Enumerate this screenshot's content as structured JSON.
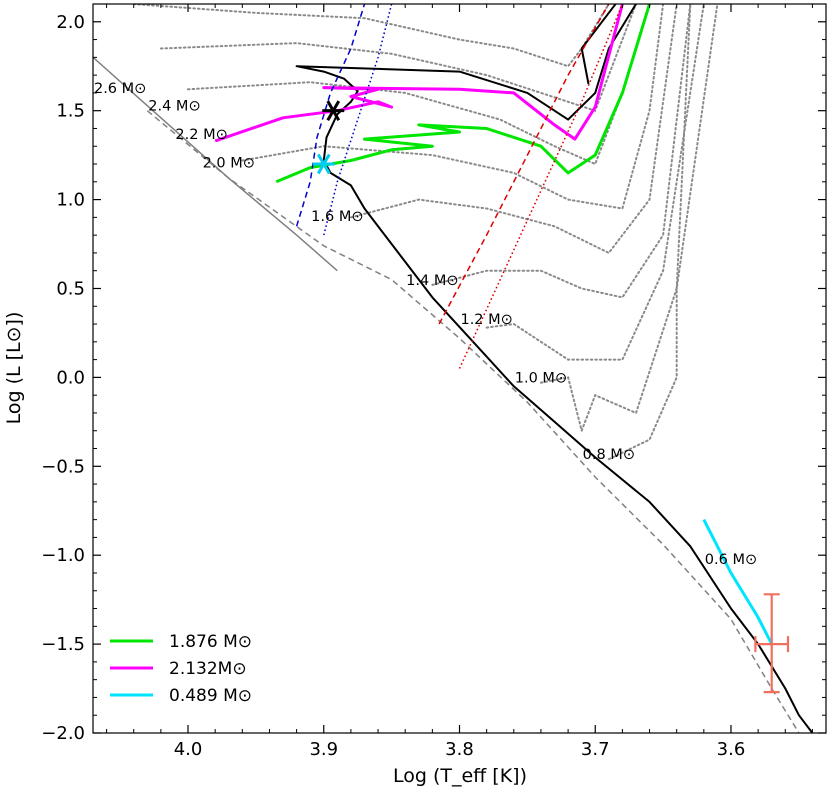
{
  "chart_data": {
    "type": "line",
    "title": "",
    "xlabel": "Log (T_eff [K])",
    "ylabel": "Log (L [L⊙])",
    "xlim": [
      4.07,
      3.53
    ],
    "ylim": [
      -2.0,
      2.1
    ],
    "x_ticks": [
      4.0,
      3.9,
      3.8,
      3.7,
      3.6
    ],
    "x_tick_labels": [
      "4.0",
      "3.9",
      "3.8",
      "3.7",
      "3.6"
    ],
    "y_ticks": [
      2.0,
      1.5,
      1.0,
      0.5,
      0.0,
      -0.5,
      -1.0,
      -1.5,
      -2.0
    ],
    "y_tick_labels": [
      "2.0",
      "1.5",
      "1.0",
      "0.5",
      "0.0",
      "−0.5",
      "−1.0",
      "−1.5",
      "−2.0"
    ],
    "legend_position": "bottom-left",
    "legend": [
      {
        "label": "1.876 M⊙",
        "color": "#00e600"
      },
      {
        "label": "2.132M⊙",
        "color": "#ff00ff"
      },
      {
        "label": "0.489 M⊙",
        "color": "#00e5ff"
      }
    ],
    "mass_labels": [
      {
        "text": "2.6 M⊙",
        "x": 4.05,
        "y": 1.6
      },
      {
        "text": "2.4 M⊙",
        "x": 4.01,
        "y": 1.5
      },
      {
        "text": "2.2 M⊙",
        "x": 3.99,
        "y": 1.34
      },
      {
        "text": "2.0 M⊙",
        "x": 3.97,
        "y": 1.18
      },
      {
        "text": "1.6 M⊙",
        "x": 3.89,
        "y": 0.88
      },
      {
        "text": "1.4 M⊙",
        "x": 3.82,
        "y": 0.52
      },
      {
        "text": "1.2 M⊙",
        "x": 3.78,
        "y": 0.3
      },
      {
        "text": "1.0 M⊙",
        "x": 3.74,
        "y": -0.03
      },
      {
        "text": "0.8 M⊙",
        "x": 3.69,
        "y": -0.46
      },
      {
        "text": "0.6 M⊙",
        "x": 3.6,
        "y": -1.05
      }
    ],
    "series": [
      {
        "name": "ZAMS",
        "color": "#808080",
        "style": "solid",
        "x": [
          4.07,
          4.02,
          3.97,
          3.92,
          3.89
        ],
        "y": [
          1.8,
          1.46,
          1.12,
          0.8,
          0.6
        ]
      },
      {
        "name": "dashed boundary",
        "color": "#808080",
        "style": "dashed",
        "x": [
          4.03,
          3.97,
          3.9,
          3.85,
          3.8,
          3.75,
          3.7,
          3.65,
          3.6,
          3.57,
          3.55
        ],
        "y": [
          1.5,
          1.12,
          0.74,
          0.55,
          0.22,
          -0.14,
          -0.56,
          -0.94,
          -1.36,
          -1.75,
          -2.0
        ]
      },
      {
        "name": "black track",
        "color": "#000000",
        "style": "solid",
        "x": [
          3.54,
          3.55,
          3.56,
          3.58,
          3.6,
          3.63,
          3.66,
          3.7,
          3.73,
          3.76,
          3.79,
          3.82,
          3.85,
          3.87,
          3.88,
          3.895,
          3.9,
          3.898,
          3.89,
          3.88,
          3.875,
          3.885,
          3.9,
          3.92,
          3.88,
          3.8,
          3.75,
          3.72,
          3.7,
          3.69,
          3.67
        ],
        "y": [
          -2.0,
          -1.9,
          -1.75,
          -1.5,
          -1.3,
          -0.95,
          -0.7,
          -0.45,
          -0.25,
          -0.05,
          0.2,
          0.45,
          0.75,
          0.95,
          1.08,
          1.15,
          1.22,
          1.35,
          1.48,
          1.55,
          1.61,
          1.68,
          1.72,
          1.75,
          1.74,
          1.72,
          1.6,
          1.45,
          1.6,
          1.85,
          2.1
        ]
      },
      {
        "name": "black RGB branch",
        "color": "#000000",
        "style": "solid",
        "x": [
          3.705,
          3.71,
          3.695,
          3.685
        ],
        "y": [
          1.65,
          1.85,
          2.0,
          2.1
        ]
      },
      {
        "name": "1.876 M⊙",
        "color": "#00e600",
        "style": "solid",
        "x": [
          3.935,
          3.91,
          3.88,
          3.85,
          3.82,
          3.87,
          3.8,
          3.83,
          3.78,
          3.74,
          3.72,
          3.7,
          3.68,
          3.66
        ],
        "y": [
          1.1,
          1.18,
          1.22,
          1.28,
          1.3,
          1.34,
          1.38,
          1.42,
          1.4,
          1.3,
          1.15,
          1.25,
          1.6,
          2.1
        ]
      },
      {
        "name": "2.132M⊙",
        "color": "#ff00ff",
        "style": "solid",
        "x": [
          3.98,
          3.93,
          3.89,
          3.86,
          3.85,
          3.88,
          3.86,
          3.9,
          3.8,
          3.76,
          3.73,
          3.715,
          3.7,
          3.68
        ],
        "y": [
          1.33,
          1.46,
          1.5,
          1.55,
          1.52,
          1.58,
          1.62,
          1.63,
          1.62,
          1.6,
          1.42,
          1.34,
          1.52,
          2.1
        ]
      },
      {
        "name": "0.489 M⊙",
        "color": "#00e5ff",
        "style": "solid",
        "x": [
          3.62,
          3.6,
          3.58,
          3.57
        ],
        "y": [
          -0.8,
          -1.1,
          -1.35,
          -1.5
        ]
      },
      {
        "name": "blue dashed",
        "color": "#0000cc",
        "style": "dashed",
        "x": [
          3.92,
          3.91,
          3.905,
          3.895,
          3.88,
          3.87
        ],
        "y": [
          0.85,
          1.1,
          1.35,
          1.6,
          1.85,
          2.1
        ]
      },
      {
        "name": "blue dotted",
        "color": "#0000cc",
        "style": "dotted",
        "x": [
          3.9,
          3.89,
          3.875,
          3.86,
          3.85
        ],
        "y": [
          0.8,
          1.1,
          1.45,
          1.8,
          2.1
        ]
      },
      {
        "name": "red dashed",
        "color": "#dd0000",
        "style": "dashed",
        "x": [
          3.815,
          3.78,
          3.75,
          3.72,
          3.69
        ],
        "y": [
          0.3,
          0.8,
          1.25,
          1.7,
          2.1
        ]
      },
      {
        "name": "red dotted",
        "color": "#dd0000",
        "style": "dotted",
        "x": [
          3.8,
          3.77,
          3.74,
          3.71,
          3.68
        ],
        "y": [
          0.05,
          0.55,
          1.05,
          1.55,
          2.1
        ]
      }
    ],
    "tracks_grey": [
      {
        "x": [
          4.04,
          3.95,
          3.87,
          3.8,
          3.76,
          3.72,
          3.71,
          3.69
        ],
        "y": [
          2.1,
          2.05,
          2.02,
          1.9,
          1.85,
          1.75,
          1.85,
          2.1
        ]
      },
      {
        "x": [
          4.02,
          3.92,
          3.85,
          3.78,
          3.74,
          3.7,
          3.69,
          3.67
        ],
        "y": [
          1.85,
          1.88,
          1.82,
          1.7,
          1.6,
          1.5,
          1.7,
          2.1
        ]
      },
      {
        "x": [
          4.0,
          3.91,
          3.84,
          3.77,
          3.73,
          3.7,
          3.68,
          3.66
        ],
        "y": [
          1.62,
          1.66,
          1.6,
          1.45,
          1.3,
          1.2,
          1.6,
          2.1
        ]
      },
      {
        "x": [
          3.96,
          3.9,
          3.82,
          3.76,
          3.72,
          3.68,
          3.66,
          3.65
        ],
        "y": [
          1.22,
          1.3,
          1.25,
          1.15,
          1.0,
          0.95,
          1.5,
          2.1
        ]
      },
      {
        "x": [
          3.88,
          3.83,
          3.78,
          3.73,
          3.69,
          3.66,
          3.64
        ],
        "y": [
          0.9,
          1.0,
          0.95,
          0.85,
          0.7,
          1.0,
          2.1
        ]
      },
      {
        "x": [
          3.82,
          3.78,
          3.74,
          3.71,
          3.68,
          3.65,
          3.63
        ],
        "y": [
          0.52,
          0.6,
          0.6,
          0.5,
          0.45,
          0.8,
          2.1
        ]
      },
      {
        "x": [
          3.78,
          3.76,
          3.74,
          3.72,
          3.68,
          3.65,
          3.62
        ],
        "y": [
          0.28,
          0.3,
          0.2,
          0.1,
          0.1,
          0.6,
          2.1
        ]
      },
      {
        "x": [
          3.74,
          3.72,
          3.71,
          3.7,
          3.67,
          3.64,
          3.61
        ],
        "y": [
          -0.03,
          0.0,
          -0.3,
          -0.1,
          -0.2,
          0.5,
          2.1
        ]
      },
      {
        "x": [
          3.69,
          3.66,
          3.64,
          3.64,
          3.63
        ],
        "y": [
          -0.46,
          -0.35,
          0.0,
          0.5,
          2.1
        ]
      }
    ],
    "markers": [
      {
        "name": "black star",
        "x": 3.893,
        "y": 1.5,
        "color": "#000000"
      },
      {
        "name": "cyan star",
        "x": 3.9,
        "y": 1.2,
        "color": "#00ccee"
      }
    ],
    "error_bar": {
      "x": 3.57,
      "y": -1.5,
      "x_err": 0.012,
      "y_err_up": 0.28,
      "y_err_down": 0.27,
      "color": "#f07060"
    }
  }
}
